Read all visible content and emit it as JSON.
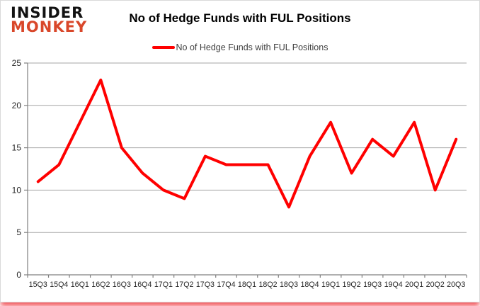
{
  "header": {
    "logo_line1": "INSIDER",
    "logo_line2": "MONKEY",
    "title": "No of Hedge Funds with FUL Positions"
  },
  "legend": {
    "label": "No of Hedge Funds with FUL Positions"
  },
  "chart_data": {
    "type": "line",
    "title": "No of Hedge Funds with FUL Positions",
    "categories": [
      "15Q3",
      "15Q4",
      "16Q1",
      "16Q2",
      "16Q3",
      "16Q4",
      "17Q1",
      "17Q2",
      "17Q3",
      "17Q4",
      "18Q1",
      "18Q2",
      "18Q3",
      "18Q4",
      "19Q1",
      "19Q2",
      "19Q3",
      "19Q4",
      "20Q1",
      "20Q2",
      "20Q3"
    ],
    "series": [
      {
        "name": "No of Hedge Funds with FUL Positions",
        "values": [
          11,
          13,
          18,
          23,
          15,
          12,
          10,
          9,
          14,
          13,
          13,
          13,
          8,
          14,
          18,
          12,
          16,
          14,
          18,
          10,
          16
        ]
      }
    ],
    "xlabel": "",
    "ylabel": "",
    "ylim": [
      0,
      25
    ],
    "yticks": [
      0,
      5,
      10,
      15,
      20,
      25
    ],
    "grid": true,
    "legend_position": "top-center"
  },
  "colors": {
    "line": "#ff0000",
    "logo_black": "#121212",
    "logo_red": "#d9472a",
    "axis": "#808080",
    "gridline": "#a6a6a6",
    "tick_text": "#262626",
    "card_border": "#d9d9d9",
    "bottom_glow": "#ed1c24"
  }
}
